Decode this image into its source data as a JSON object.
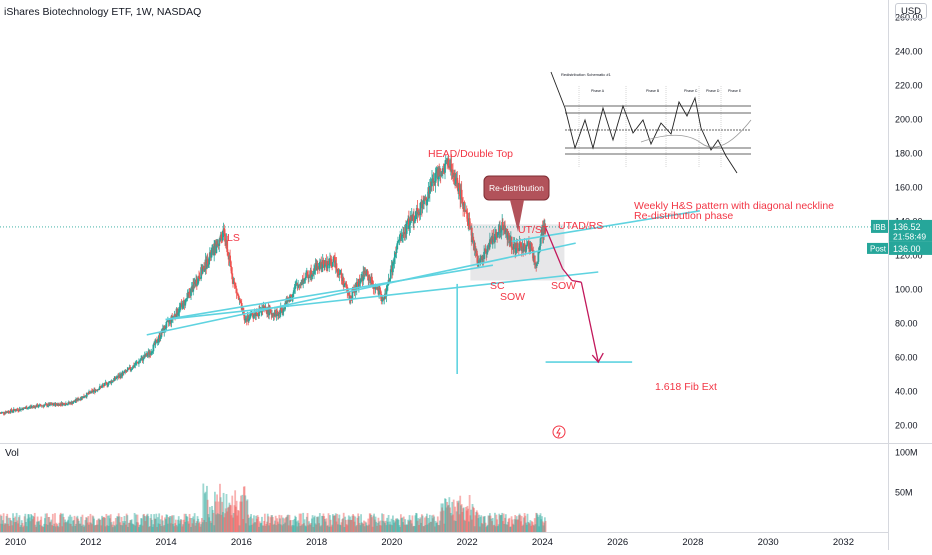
{
  "header": {
    "symbol_title": "iShares Biotechnology ETF, 1W, NASDAQ",
    "currency": "USD"
  },
  "colors": {
    "up": "#26a69a",
    "down": "#ef5350",
    "annotation": "#f23645",
    "trendline": "#5fd3e0",
    "box": "#d1d4dc",
    "callout_fill": "#b2525a"
  },
  "volume_label": "Vol",
  "price_axis": {
    "ticks": [
      "260.00",
      "240.00",
      "220.00",
      "200.00",
      "180.00",
      "160.00",
      "140.00",
      "120.00",
      "100.00",
      "80.00",
      "60.00",
      "40.00",
      "20.00"
    ]
  },
  "volume_axis": {
    "ticks": [
      "100M",
      "50M"
    ]
  },
  "time_axis": {
    "ticks": [
      "2010",
      "2012",
      "2014",
      "2016",
      "2018",
      "2020",
      "2022",
      "2024",
      "2026",
      "2028",
      "2030",
      "2032"
    ]
  },
  "last_price": {
    "symbol": "IBB",
    "price": "136.52",
    "countdown": "21:58:49",
    "post_label": "Post",
    "post_price": "136.00"
  },
  "annotations": {
    "ls": "LS",
    "head": "HEAD/Double Top",
    "redistribution": "Re-distribution",
    "ut_st": "UT/ST",
    "utad_rs": "UTAD/RS",
    "sc": "SC",
    "sow1": "SOW",
    "sow2": "SOW",
    "note1": "Weekly H&S pattern with diagonal neckline",
    "note2": "Re-distribution phase",
    "fib": "1.618 Fib Ext"
  },
  "inset": {
    "title": "Redistribution Schematic #1",
    "phases": [
      "Phase A",
      "Phase B",
      "Phase C",
      "Phase D",
      "Phase E"
    ]
  },
  "chart_data": {
    "type": "candlestick",
    "y_scale": "linear",
    "ylim": [
      10,
      270
    ],
    "xlim": [
      2009.6,
      2033.2
    ],
    "price_anchors": [
      {
        "x": 2009.6,
        "y": 27
      },
      {
        "x": 2010.5,
        "y": 31
      },
      {
        "x": 2011.5,
        "y": 33
      },
      {
        "x": 2012.5,
        "y": 45
      },
      {
        "x": 2013.0,
        "y": 52
      },
      {
        "x": 2013.6,
        "y": 63
      },
      {
        "x": 2014.0,
        "y": 78
      },
      {
        "x": 2014.5,
        "y": 92
      },
      {
        "x": 2015.0,
        "y": 112
      },
      {
        "x": 2015.55,
        "y": 133
      },
      {
        "x": 2015.8,
        "y": 105
      },
      {
        "x": 2016.1,
        "y": 82
      },
      {
        "x": 2016.6,
        "y": 88
      },
      {
        "x": 2017.0,
        "y": 85
      },
      {
        "x": 2017.5,
        "y": 102
      },
      {
        "x": 2018.0,
        "y": 113
      },
      {
        "x": 2018.5,
        "y": 116
      },
      {
        "x": 2018.9,
        "y": 95
      },
      {
        "x": 2019.3,
        "y": 110
      },
      {
        "x": 2019.8,
        "y": 93
      },
      {
        "x": 2020.2,
        "y": 128
      },
      {
        "x": 2020.5,
        "y": 140
      },
      {
        "x": 2020.9,
        "y": 152
      },
      {
        "x": 2021.2,
        "y": 168
      },
      {
        "x": 2021.5,
        "y": 175
      },
      {
        "x": 2021.8,
        "y": 158
      },
      {
        "x": 2022.1,
        "y": 135
      },
      {
        "x": 2022.3,
        "y": 115
      },
      {
        "x": 2022.7,
        "y": 130
      },
      {
        "x": 2022.95,
        "y": 137
      },
      {
        "x": 2023.3,
        "y": 124
      },
      {
        "x": 2023.7,
        "y": 125
      },
      {
        "x": 2023.85,
        "y": 112
      },
      {
        "x": 2024.0,
        "y": 134
      },
      {
        "x": 2024.1,
        "y": 136.5
      }
    ],
    "projection": [
      {
        "x": 2024.1,
        "y": 136
      },
      {
        "x": 2024.55,
        "y": 112
      },
      {
        "x": 2024.8,
        "y": 105
      },
      {
        "x": 2025.05,
        "y": 104
      },
      {
        "x": 2025.5,
        "y": 57
      }
    ],
    "trendlines": [
      {
        "x1": 2014.0,
        "y1": 82,
        "x2": 2022.7,
        "y2": 114
      },
      {
        "x1": 2013.5,
        "y1": 73,
        "x2": 2024.9,
        "y2": 127
      },
      {
        "x1": 2014.0,
        "y1": 82,
        "x2": 2025.5,
        "y2": 110
      },
      {
        "x1": 2023.2,
        "y1": 128,
        "x2": 2028.2,
        "y2": 146
      }
    ],
    "redistribution_box": {
      "x1": 2022.1,
      "x2": 2024.6,
      "y1": 105,
      "y2": 138
    },
    "measured_move": {
      "x": 2021.75,
      "y1": 103,
      "y2": 50
    },
    "fib_target": {
      "x1": 2024.1,
      "x2": 2026.4,
      "y": 57
    },
    "current_price_line": 136.52,
    "volume_ylim": [
      0,
      110
    ]
  }
}
